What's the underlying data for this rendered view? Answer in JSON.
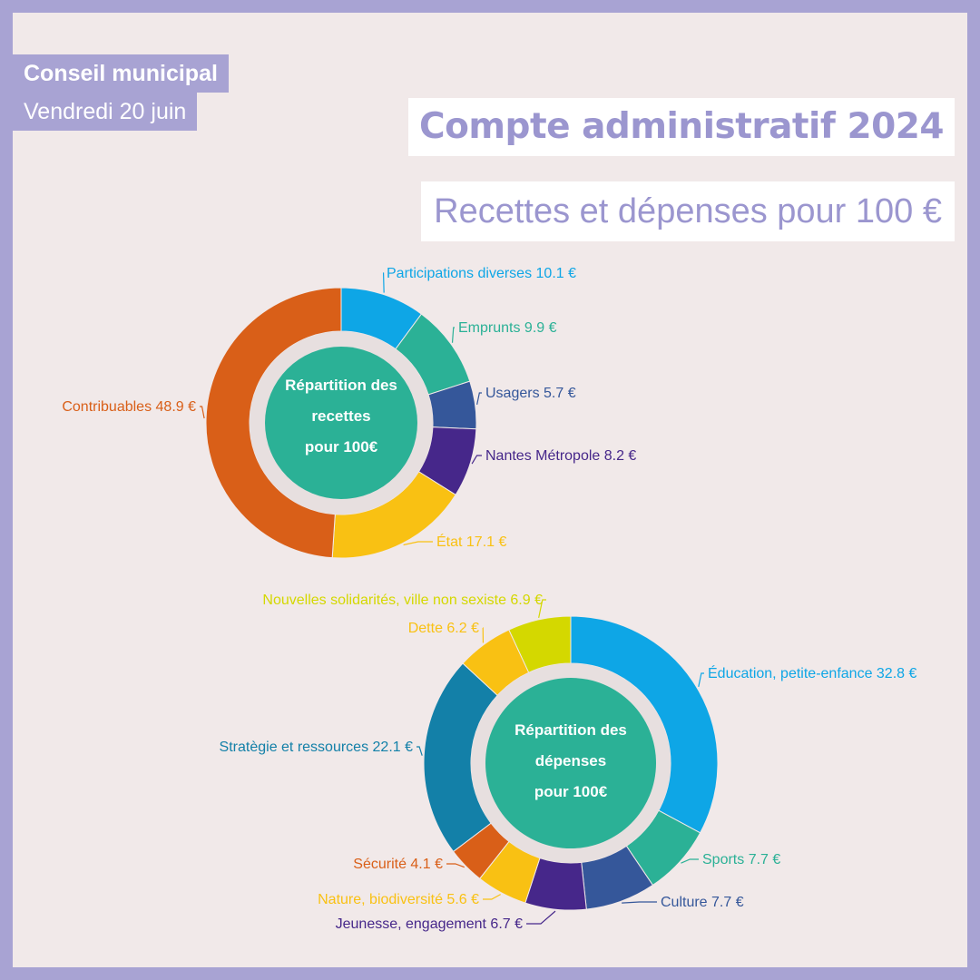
{
  "header": {
    "meeting": "Conseil municipal",
    "date": "Vendredi 20 juin",
    "title": "Compte administratif 2024",
    "subtitle": "Recettes et dépenses pour 100 €"
  },
  "colors": {
    "frame": "#a8a3d3",
    "background": "#f1e9e9",
    "title_text": "#9b96cf",
    "center_disc": "#2bb196",
    "ring_gap": "#e7dfdf"
  },
  "chart_data": [
    {
      "type": "donut",
      "center_label": [
        "Répartition des",
        "recettes",
        "pour 100€"
      ],
      "unit": "€",
      "slices": [
        {
          "label": "Participations diverses 10.1 €",
          "value": 10.1,
          "color": "#0ea6e6"
        },
        {
          "label": "Emprunts 9.9 €",
          "value": 9.9,
          "color": "#2bb196"
        },
        {
          "label": "Usagers 5.7 €",
          "value": 5.7,
          "color": "#35579a"
        },
        {
          "label": "Nantes Métropole 8.2 €",
          "value": 8.2,
          "color": "#46278a"
        },
        {
          "label": "État 17.1 €",
          "value": 17.1,
          "color": "#f9c113"
        },
        {
          "label": "Contribuables 48.9 €",
          "value": 48.9,
          "color": "#d95f18"
        }
      ]
    },
    {
      "type": "donut",
      "center_label": [
        "Répartition des",
        "dépenses",
        "pour 100€"
      ],
      "unit": "€",
      "slices": [
        {
          "label": "Éducation, petite-enfance 32.8 €",
          "value": 32.8,
          "color": "#0ea6e6"
        },
        {
          "label": "Sports 7.7 €",
          "value": 7.7,
          "color": "#2bb196"
        },
        {
          "label": "Culture 7.7 €",
          "value": 7.7,
          "color": "#35579a"
        },
        {
          "label": "Jeunesse, engagement 6.7 €",
          "value": 6.7,
          "color": "#46278a"
        },
        {
          "label": "Nature, biodiversité 5.6 €",
          "value": 5.6,
          "color": "#f9c113"
        },
        {
          "label": "Sécurité 4.1 €",
          "value": 4.1,
          "color": "#d95f18"
        },
        {
          "label": "Stratègie et ressources 22.1 €",
          "value": 22.1,
          "color": "#1380a8"
        },
        {
          "label": "Dette 6.2 €",
          "value": 6.2,
          "color": "#f9c113"
        },
        {
          "label": "Nouvelles solidarités, ville non sexiste 6.9 €",
          "value": 6.9,
          "color": "#d4d800"
        }
      ]
    }
  ]
}
